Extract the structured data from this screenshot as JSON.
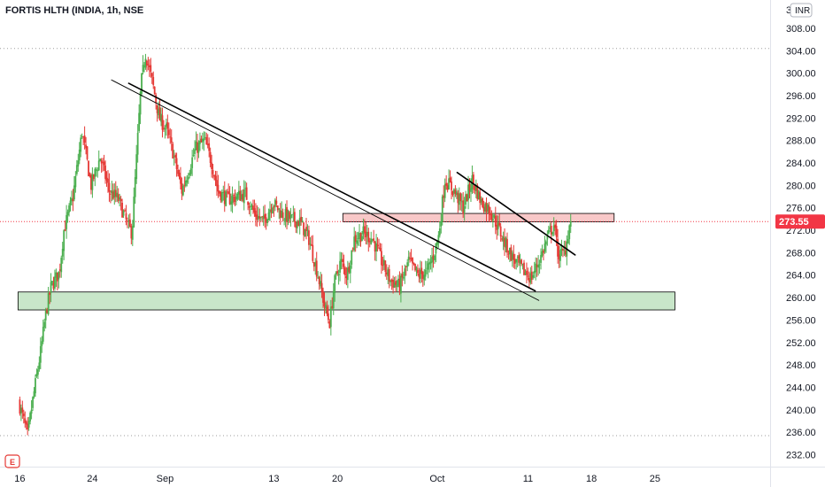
{
  "header": {
    "symbol": "FORTIS HLTH (INDIA, 1h, NSE"
  },
  "currency_badge": "INR",
  "events_badge": "E",
  "chart_data": {
    "type": "candlestick",
    "ylim": [
      231.0,
      312.5
    ],
    "y_ticks": [
      232,
      236,
      240,
      244,
      248,
      252,
      256,
      260,
      264,
      268,
      272,
      276,
      280,
      284,
      288,
      292,
      296,
      300,
      304,
      308
    ],
    "y_tick_labels": [
      "232.00",
      "236.00",
      "240.00",
      "244.00",
      "248.00",
      "252.00",
      "256.00",
      "260.00",
      "264.00",
      "268.00",
      "272.00",
      "276.00",
      "280.00",
      "284.00",
      "288.00",
      "292.00",
      "296.00",
      "300.00",
      "304.00",
      "308.00"
    ],
    "y_top_label": "3",
    "x_ticks": [
      {
        "label": "16",
        "day": 0
      },
      {
        "label": "24",
        "day": 8
      },
      {
        "label": "Sep",
        "day": 16
      },
      {
        "label": "13",
        "day": 28
      },
      {
        "label": "20",
        "day": 35
      },
      {
        "label": "Oct",
        "day": 46
      },
      {
        "label": "11",
        "day": 56
      },
      {
        "label": "18",
        "day": 63
      },
      {
        "label": "25",
        "day": 70
      }
    ],
    "x_domain": [
      -0.2,
      72.2
    ],
    "last_price": "273.55",
    "last_price_value": 273.55,
    "colors": {
      "up": "#26a69a",
      "up_body": "#4caf50",
      "down": "#ef5350",
      "down_body": "#e53935",
      "last_price_tag": "#f23645",
      "zone_green_fill": "#c8e6c9",
      "zone_red_fill": "#f8c8c8",
      "trendline": "#000000",
      "dotted_level": "#9e9e9e"
    },
    "horizontal_levels": [
      {
        "name": "resistance-dotted",
        "value": 304.4,
        "style": "dotted"
      },
      {
        "name": "support-dotted",
        "value": 235.4,
        "style": "dotted"
      }
    ],
    "zones": [
      {
        "name": "support-zone",
        "from_day": -0.2,
        "to_day": 72.2,
        "low": 257.8,
        "high": 261.0,
        "fill": "#c8e6c9"
      },
      {
        "name": "resistance-zone",
        "from_day": 35.6,
        "to_day": 65.5,
        "low": 273.5,
        "high": 275.0,
        "fill": "#f8c8c8"
      }
    ],
    "trendlines": [
      {
        "name": "trendline-outer",
        "x1": 10.1,
        "y1": 298.8,
        "x2": 57.2,
        "y2": 259.5,
        "width": 0.9
      },
      {
        "name": "trendline-main",
        "x1": 12.0,
        "y1": 298.2,
        "x2": 56.8,
        "y2": 261.2,
        "width": 1.6
      },
      {
        "name": "trendline-short",
        "x1": 48.2,
        "y1": 282.3,
        "x2": 61.2,
        "y2": 267.6,
        "width": 1.6
      }
    ],
    "anchors": [
      [
        0.0,
        241.5
      ],
      [
        1.0,
        235.4
      ],
      [
        1.5,
        241.0
      ],
      [
        2.5,
        251.0
      ],
      [
        3.0,
        257.2
      ],
      [
        3.6,
        262.0
      ],
      [
        4.5,
        264.5
      ],
      [
        5.0,
        272.0
      ],
      [
        6.0,
        278.0
      ],
      [
        7.0,
        289.5
      ],
      [
        8.0,
        280.0
      ],
      [
        9.0,
        285.0
      ],
      [
        10.0,
        279.0
      ],
      [
        11.0,
        277.5
      ],
      [
        12.0,
        273.0
      ],
      [
        12.5,
        271.5
      ],
      [
        13.5,
        298.0
      ],
      [
        14.0,
        303.5
      ],
      [
        14.8,
        298.0
      ],
      [
        15.5,
        292.0
      ],
      [
        16.3,
        290.0
      ],
      [
        17.0,
        286.0
      ],
      [
        18.0,
        279.0
      ],
      [
        18.8,
        283.0
      ],
      [
        19.5,
        286.5
      ],
      [
        20.5,
        288.0
      ],
      [
        21.3,
        284.0
      ],
      [
        22.0,
        279.0
      ],
      [
        23.0,
        277.5
      ],
      [
        24.0,
        278.0
      ],
      [
        25.0,
        278.5
      ],
      [
        26.0,
        275.0
      ],
      [
        27.0,
        273.5
      ],
      [
        28.0,
        277.0
      ],
      [
        29.0,
        275.0
      ],
      [
        30.0,
        274.0
      ],
      [
        31.0,
        273.5
      ],
      [
        32.0,
        270.5
      ],
      [
        33.0,
        264.0
      ],
      [
        33.8,
        258.0
      ],
      [
        34.3,
        255.5
      ],
      [
        34.8,
        262.5
      ],
      [
        35.5,
        266.5
      ],
      [
        36.2,
        264.0
      ],
      [
        37.0,
        270.5
      ],
      [
        38.0,
        271.5
      ],
      [
        39.0,
        270.5
      ],
      [
        40.0,
        266.5
      ],
      [
        41.0,
        263.0
      ],
      [
        42.0,
        262.0
      ],
      [
        43.0,
        266.5
      ],
      [
        44.0,
        264.0
      ],
      [
        45.0,
        264.5
      ],
      [
        45.8,
        268.0
      ],
      [
        46.3,
        271.0
      ],
      [
        47.0,
        281.0
      ],
      [
        48.0,
        279.0
      ],
      [
        49.0,
        276.0
      ],
      [
        50.0,
        281.0
      ],
      [
        51.0,
        277.0
      ],
      [
        52.0,
        275.5
      ],
      [
        53.0,
        272.0
      ],
      [
        53.5,
        270.0
      ],
      [
        54.5,
        267.0
      ],
      [
        55.5,
        265.0
      ],
      [
        56.5,
        263.5
      ],
      [
        57.5,
        267.0
      ],
      [
        58.5,
        271.5
      ],
      [
        59.0,
        273.0
      ],
      [
        59.5,
        267.5
      ],
      [
        60.2,
        268.0
      ],
      [
        60.8,
        273.55
      ]
    ]
  }
}
